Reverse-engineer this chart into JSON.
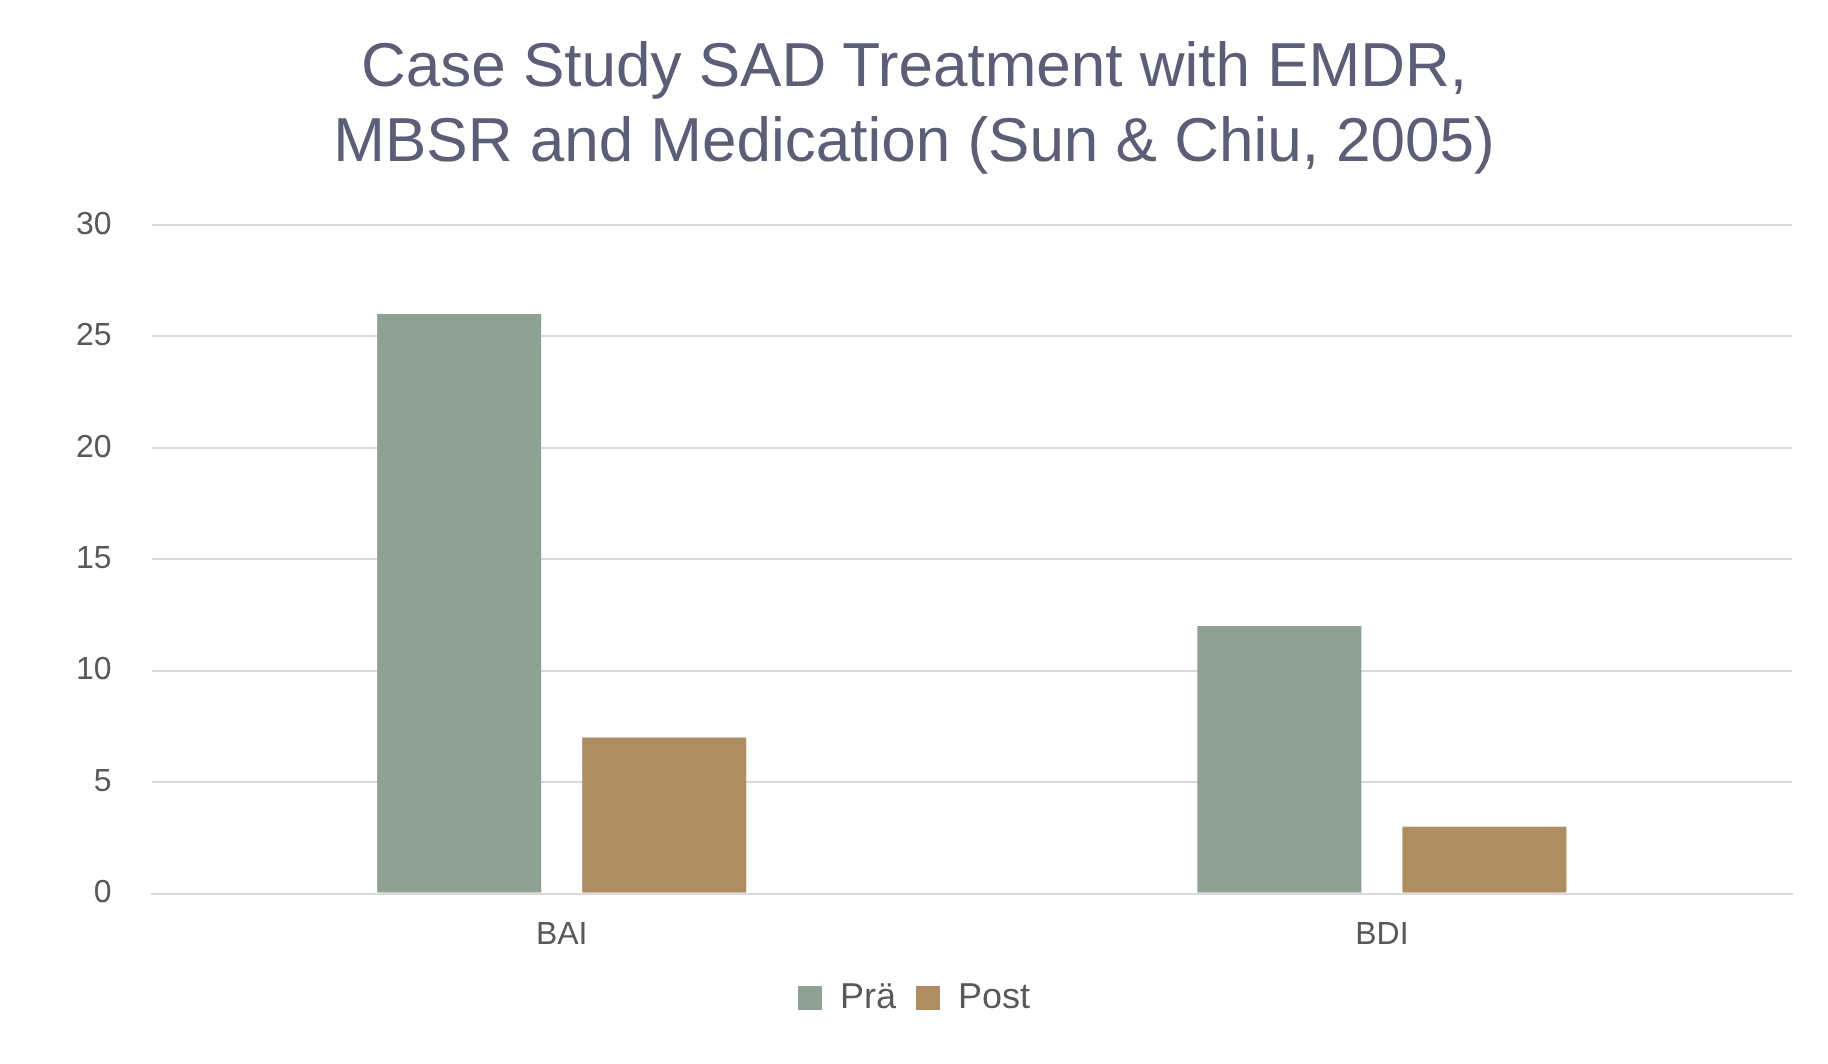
{
  "chart_data": {
    "type": "bar",
    "title": "Case Study SAD Treatment with EMDR, MBSR and Medication (Sun & Chiu, 2005)",
    "categories": [
      "BAI",
      "BDI"
    ],
    "series": [
      {
        "name": "Prä",
        "color": "#8fa095",
        "values": [
          26,
          12
        ]
      },
      {
        "name": "Post",
        "color": "#ad8d61",
        "values": [
          7,
          3
        ]
      }
    ],
    "ylim": [
      0,
      30
    ],
    "yticks": [
      0,
      5,
      10,
      15,
      20,
      25,
      30
    ],
    "grid": "y",
    "legend": "bottom"
  }
}
